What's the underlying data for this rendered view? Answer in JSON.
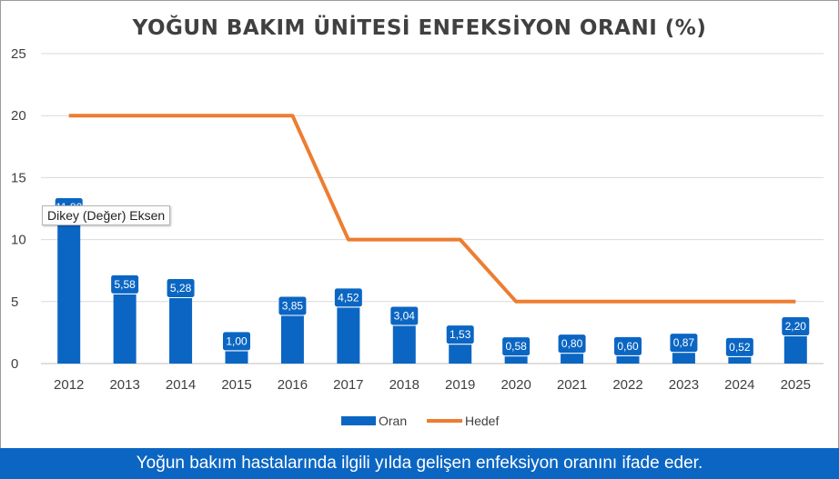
{
  "title": "YOĞUN BAKIM ÜNİTESİ ENFEKSİYON ORANI (%)",
  "footer_text": "Yoğun bakım hastalarında ilgili yılda gelişen enfeksiyon oranını ifade eder.",
  "tooltip_text": "Dikey (Değer) Eksen",
  "colors": {
    "bar": "#0b66c3",
    "line": "#ed7d31",
    "grid": "#d9d9d9",
    "footer": "#0b66c3"
  },
  "chart_data": {
    "type": "bar",
    "categories": [
      "2012",
      "2013",
      "2014",
      "2015",
      "2016",
      "2017",
      "2018",
      "2019",
      "2020",
      "2021",
      "2022",
      "2023",
      "2024",
      "2025"
    ],
    "series": [
      {
        "name": "Oran",
        "type": "bar",
        "values": [
          11.8,
          5.58,
          5.28,
          1.0,
          3.85,
          4.52,
          3.04,
          1.53,
          0.58,
          0.8,
          0.6,
          0.87,
          0.52,
          2.2
        ],
        "labels": [
          "11,80",
          "5,58",
          "5,28",
          "1,00",
          "3,85",
          "4,52",
          "3,04",
          "1,53",
          "0,58",
          "0,80",
          "0,60",
          "0,87",
          "0,52",
          "2,20"
        ]
      },
      {
        "name": "Hedef",
        "type": "line",
        "values": [
          20,
          20,
          20,
          20,
          20,
          10,
          10,
          10,
          5,
          5,
          5,
          5,
          5,
          5
        ]
      }
    ],
    "yticks": [
      "0",
      "5",
      "10",
      "15",
      "20",
      "25"
    ],
    "ylim": [
      0,
      25
    ],
    "grid": true,
    "legend": "bottom"
  }
}
